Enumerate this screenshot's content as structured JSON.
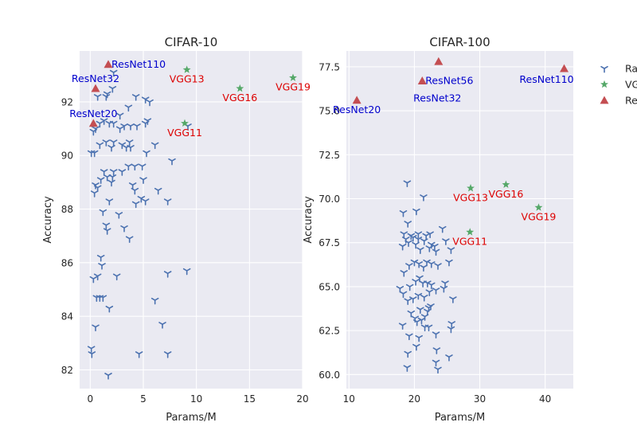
{
  "chart_data": [
    {
      "type": "scatter",
      "title": "CIFAR-10",
      "xlabel": "Params/M",
      "ylabel": "Accuracy",
      "xlim": [
        -1,
        20
      ],
      "ylim": [
        81.3,
        93.9
      ],
      "xticks": [
        0,
        5,
        10,
        15,
        20
      ],
      "yticks": [
        82,
        84,
        86,
        88,
        90,
        92
      ],
      "grid": true,
      "series": [
        {
          "key": "random",
          "marker": "tri",
          "color": "#4c72b0",
          "points": [
            [
              0.1,
              82.8
            ],
            [
              0.15,
              82.6
            ],
            [
              0.5,
              83.6
            ],
            [
              0.6,
              84.7
            ],
            [
              0.9,
              84.7
            ],
            [
              1.2,
              84.7
            ],
            [
              1.8,
              84.3
            ],
            [
              1.7,
              81.8
            ],
            [
              4.6,
              82.6
            ],
            [
              7.3,
              82.6
            ],
            [
              6.8,
              83.7
            ],
            [
              6.1,
              84.6
            ],
            [
              7.3,
              85.6
            ],
            [
              9.1,
              85.7
            ],
            [
              2.5,
              85.5
            ],
            [
              0.3,
              85.4
            ],
            [
              0.7,
              85.5
            ],
            [
              1.0,
              86.2
            ],
            [
              1.1,
              85.9
            ],
            [
              0.4,
              88.6
            ],
            [
              0.5,
              88.9
            ],
            [
              0.7,
              88.8
            ],
            [
              1.2,
              87.9
            ],
            [
              1.5,
              87.4
            ],
            [
              1.6,
              87.2
            ],
            [
              1.8,
              88.3
            ],
            [
              2.7,
              87.8
            ],
            [
              3.2,
              87.3
            ],
            [
              3.7,
              86.9
            ],
            [
              4.3,
              88.2
            ],
            [
              4.2,
              88.7
            ],
            [
              4.8,
              88.4
            ],
            [
              5.2,
              88.3
            ],
            [
              6.4,
              88.7
            ],
            [
              7.3,
              88.3
            ],
            [
              1.0,
              89.1
            ],
            [
              1.3,
              89.4
            ],
            [
              1.6,
              89.2
            ],
            [
              2.0,
              89.0
            ],
            [
              2.2,
              89.4
            ],
            [
              3.0,
              89.4
            ],
            [
              3.6,
              89.6
            ],
            [
              4.2,
              89.6
            ],
            [
              4.9,
              89.6
            ],
            [
              5.0,
              89.1
            ],
            [
              4.0,
              88.9
            ],
            [
              2.1,
              89.2
            ],
            [
              0.1,
              90.1
            ],
            [
              0.4,
              90.1
            ],
            [
              0.9,
              90.4
            ],
            [
              1.5,
              90.5
            ],
            [
              2.0,
              90.3
            ],
            [
              2.2,
              90.5
            ],
            [
              3.0,
              90.4
            ],
            [
              3.4,
              90.3
            ],
            [
              3.8,
              90.3
            ],
            [
              3.7,
              90.5
            ],
            [
              5.3,
              90.1
            ],
            [
              6.1,
              90.4
            ],
            [
              7.7,
              89.8
            ],
            [
              0.3,
              90.9
            ],
            [
              0.5,
              91.0
            ],
            [
              0.9,
              91.2
            ],
            [
              1.3,
              91.3
            ],
            [
              1.8,
              91.2
            ],
            [
              2.2,
              91.2
            ],
            [
              2.8,
              91.0
            ],
            [
              3.2,
              91.1
            ],
            [
              3.8,
              91.1
            ],
            [
              4.4,
              91.1
            ],
            [
              5.2,
              91.2
            ],
            [
              5.4,
              91.3
            ],
            [
              9.2,
              91.1
            ],
            [
              0.7,
              92.2
            ],
            [
              1.6,
              92.3
            ],
            [
              1.5,
              92.2
            ],
            [
              2.8,
              91.5
            ],
            [
              3.6,
              91.8
            ],
            [
              4.3,
              92.2
            ],
            [
              5.2,
              92.1
            ],
            [
              5.6,
              92.0
            ],
            [
              2.1,
              92.5
            ],
            [
              2.2,
              93.1
            ]
          ]
        },
        {
          "key": "vgg",
          "marker": "star",
          "color": "#55a868",
          "points": [
            [
              8.9,
              91.2
            ],
            [
              9.1,
              93.2
            ],
            [
              14.1,
              92.5
            ],
            [
              19.1,
              92.9
            ]
          ]
        },
        {
          "key": "resnet",
          "marker": "triangle",
          "color": "#c44e52",
          "points": [
            [
              0.3,
              91.2
            ],
            [
              0.5,
              92.5
            ],
            [
              1.7,
              93.4
            ]
          ]
        }
      ],
      "annotations": [
        {
          "text": "ResNet20",
          "x": 0.3,
          "y": 91.2,
          "color": "#0000cc",
          "pos": "above"
        },
        {
          "text": "ResNet32",
          "x": 0.5,
          "y": 92.5,
          "color": "#0000cc",
          "pos": "above"
        },
        {
          "text": "ResNet110",
          "x": 1.7,
          "y": 93.4,
          "color": "#0000cc",
          "pos": "right"
        },
        {
          "text": "VGG11",
          "x": 8.9,
          "y": 91.2,
          "color": "#dd0000",
          "pos": "below"
        },
        {
          "text": "VGG13",
          "x": 9.1,
          "y": 93.2,
          "color": "#dd0000",
          "pos": "below"
        },
        {
          "text": "VGG16",
          "x": 14.1,
          "y": 92.5,
          "color": "#dd0000",
          "pos": "below"
        },
        {
          "text": "VGG19",
          "x": 19.1,
          "y": 92.9,
          "color": "#dd0000",
          "pos": "below"
        }
      ]
    },
    {
      "type": "scatter",
      "title": "CIFAR-100",
      "xlabel": "Params/M",
      "ylabel": "Accuracy",
      "xlim": [
        9.6,
        44.3
      ],
      "ylim": [
        59.2,
        78.4
      ],
      "xticks": [
        10,
        20,
        30,
        40
      ],
      "yticks": [
        60.0,
        62.5,
        65.0,
        67.5,
        70.0,
        72.5,
        75.0,
        77.5
      ],
      "ytickFixed": 1,
      "grid": true,
      "series": [
        {
          "key": "random",
          "marker": "tri",
          "color": "#4c72b0",
          "points": [
            [
              18.9,
              60.4
            ],
            [
              19.0,
              61.2
            ],
            [
              20.3,
              61.6
            ],
            [
              20.7,
              62.1
            ],
            [
              18.2,
              62.8
            ],
            [
              19.2,
              62.2
            ],
            [
              21.6,
              62.7
            ],
            [
              22.2,
              62.7
            ],
            [
              23.3,
              62.3
            ],
            [
              23.4,
              61.4
            ],
            [
              23.6,
              60.3
            ],
            [
              23.3,
              60.7
            ],
            [
              25.3,
              61.0
            ],
            [
              25.6,
              62.6
            ],
            [
              25.7,
              62.9
            ],
            [
              17.8,
              64.9
            ],
            [
              18.3,
              64.6
            ],
            [
              19.0,
              64.2
            ],
            [
              19.5,
              63.5
            ],
            [
              20.1,
              63.2
            ],
            [
              20.4,
              63.0
            ],
            [
              20.9,
              63.7
            ],
            [
              21.1,
              63.1
            ],
            [
              21.6,
              63.3
            ],
            [
              22.0,
              63.6
            ],
            [
              22.2,
              63.8
            ],
            [
              22.5,
              63.9
            ],
            [
              22.3,
              64.7
            ],
            [
              21.5,
              64.4
            ],
            [
              20.6,
              64.5
            ],
            [
              19.8,
              64.3
            ],
            [
              19.3,
              65.0
            ],
            [
              20.2,
              65.3
            ],
            [
              20.8,
              65.5
            ],
            [
              21.3,
              65.2
            ],
            [
              22.0,
              65.2
            ],
            [
              22.6,
              65.1
            ],
            [
              23.3,
              64.8
            ],
            [
              24.5,
              64.9
            ],
            [
              24.7,
              65.2
            ],
            [
              25.9,
              64.3
            ],
            [
              18.4,
              65.8
            ],
            [
              19.2,
              66.2
            ],
            [
              20.0,
              66.4
            ],
            [
              20.7,
              66.3
            ],
            [
              21.4,
              66.1
            ],
            [
              21.9,
              66.4
            ],
            [
              22.6,
              66.3
            ],
            [
              23.6,
              66.2
            ],
            [
              25.3,
              66.4
            ],
            [
              18.2,
              67.3
            ],
            [
              18.7,
              67.7
            ],
            [
              19.5,
              67.9
            ],
            [
              20.2,
              67.4
            ],
            [
              20.9,
              67.1
            ],
            [
              21.5,
              67.6
            ],
            [
              22.3,
              67.2
            ],
            [
              22.6,
              67.4
            ],
            [
              23.3,
              67.0
            ],
            [
              24.8,
              67.6
            ],
            [
              25.6,
              67.1
            ],
            [
              18.4,
              68.0
            ],
            [
              19.1,
              67.5
            ],
            [
              19.8,
              67.8
            ],
            [
              20.6,
              67.7
            ],
            [
              21.8,
              67.9
            ],
            [
              22.4,
              68.0
            ],
            [
              23.1,
              67.3
            ],
            [
              24.3,
              68.3
            ],
            [
              19.0,
              68.6
            ],
            [
              20.6,
              68.0
            ],
            [
              18.3,
              69.2
            ],
            [
              20.3,
              69.3
            ],
            [
              21.4,
              70.1
            ],
            [
              18.9,
              70.9
            ]
          ]
        },
        {
          "key": "vgg",
          "marker": "star",
          "color": "#55a868",
          "points": [
            [
              28.5,
              68.1
            ],
            [
              28.6,
              70.6
            ],
            [
              34.0,
              70.8
            ],
            [
              39.0,
              69.5
            ]
          ]
        },
        {
          "key": "resnet",
          "marker": "triangle",
          "color": "#c44e52",
          "points": [
            [
              11.2,
              75.6
            ],
            [
              21.2,
              76.7
            ],
            [
              23.7,
              77.8
            ],
            [
              42.9,
              77.4
            ]
          ]
        }
      ],
      "annotations": [
        {
          "text": "ResNet20",
          "x": 11.2,
          "y": 75.6,
          "color": "#0000cc",
          "pos": "below"
        },
        {
          "text": "ResNet32",
          "x": 21.2,
          "y": 76.7,
          "color": "#0000cc",
          "pos": "belowfar"
        },
        {
          "text": "ResNet56",
          "x": 21.2,
          "y": 76.7,
          "color": "#0000cc",
          "pos": "right"
        },
        {
          "text": "ResNet110",
          "x": 42.9,
          "y": 77.4,
          "color": "#0000cc",
          "pos": "belowleft"
        },
        {
          "text": "VGG11",
          "x": 28.5,
          "y": 68.1,
          "color": "#dd0000",
          "pos": "below"
        },
        {
          "text": "VGG13",
          "x": 28.6,
          "y": 70.6,
          "color": "#dd0000",
          "pos": "below"
        },
        {
          "text": "VGG16",
          "x": 34.0,
          "y": 70.8,
          "color": "#dd0000",
          "pos": "below"
        },
        {
          "text": "VGG19",
          "x": 39.0,
          "y": 69.5,
          "color": "#dd0000",
          "pos": "below"
        }
      ]
    }
  ],
  "legend": {
    "placement": "right",
    "entries": [
      {
        "key": "random",
        "label": "Ra"
      },
      {
        "key": "vgg",
        "label": "VG"
      },
      {
        "key": "resnet",
        "label": "Re"
      }
    ]
  },
  "colors": {
    "plot_background": "#eaeaf2",
    "grid": "#ffffff",
    "axis_text": "#262626"
  }
}
